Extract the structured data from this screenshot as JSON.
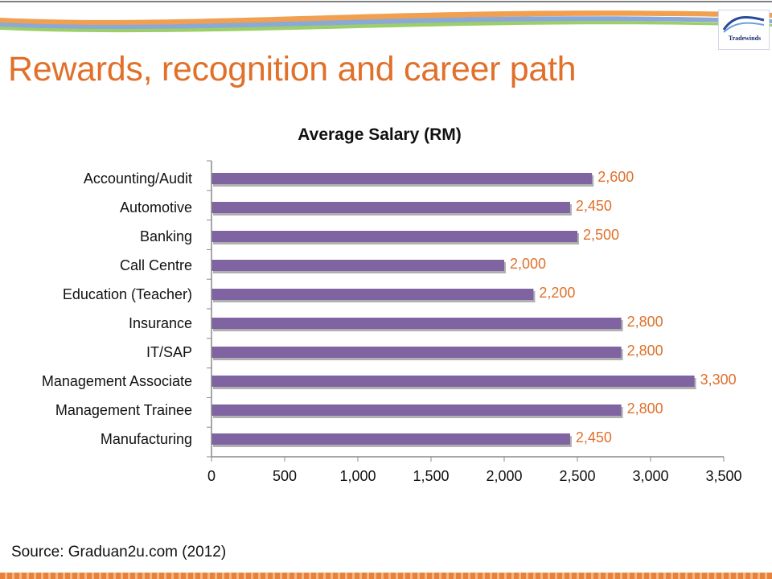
{
  "slide": {
    "title": "Rewards, recognition and career path",
    "source": "Source: Graduan2u.com (2012)",
    "logo_text": "Tradewinds"
  },
  "colors": {
    "title": "#e0702a",
    "bar": "#8064a2",
    "bar_shadow": "#b0b0b0",
    "data_label": "#e0702a",
    "axis": "#8a8a8a"
  },
  "chart_data": {
    "type": "bar",
    "orientation": "horizontal",
    "title": "Average Salary (RM)",
    "categories": [
      "Accounting/Audit",
      "Automotive",
      "Banking",
      "Call Centre",
      "Education (Teacher)",
      "Insurance",
      "IT/SAP",
      "Management Associate",
      "Management Trainee",
      "Manufacturing"
    ],
    "values": [
      2600,
      2450,
      2500,
      2000,
      2200,
      2800,
      2800,
      3300,
      2800,
      2450
    ],
    "data_labels": [
      "2,600",
      "2,450",
      "2,500",
      "2,000",
      "2,200",
      "2,800",
      "2,800",
      "3,300",
      "2,800",
      "2,450"
    ],
    "xlim": [
      0,
      3500
    ],
    "xticks": [
      0,
      500,
      1000,
      1500,
      2000,
      2500,
      3000,
      3500
    ],
    "xtick_labels": [
      "0",
      "500",
      "1,000",
      "1,500",
      "2,000",
      "2,500",
      "3,000",
      "3,500"
    ],
    "xlabel": "",
    "ylabel": "",
    "grid": false,
    "legend": "none"
  }
}
